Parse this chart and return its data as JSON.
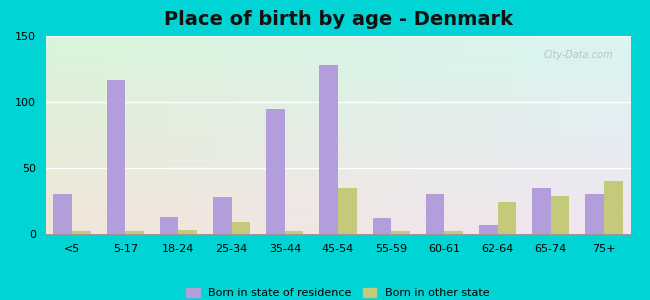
{
  "title": "Place of birth by age - Denmark",
  "categories": [
    "<5",
    "5-17",
    "18-24",
    "25-34",
    "35-44",
    "45-54",
    "55-59",
    "60-61",
    "62-64",
    "65-74",
    "75+"
  ],
  "purple_values": [
    30,
    117,
    13,
    28,
    95,
    128,
    12,
    30,
    7,
    35,
    30
  ],
  "green_values": [
    2,
    2,
    3,
    9,
    2,
    35,
    2,
    2,
    24,
    29,
    40
  ],
  "purple_color": "#b39ddb",
  "green_color": "#c5c97a",
  "ylim": [
    0,
    150
  ],
  "yticks": [
    0,
    50,
    100,
    150
  ],
  "legend_purple": "Born in state of residence",
  "legend_green": "Born in other state",
  "bg_outer": "#00d4d4",
  "title_fontsize": 14,
  "watermark": "City-Data.com"
}
